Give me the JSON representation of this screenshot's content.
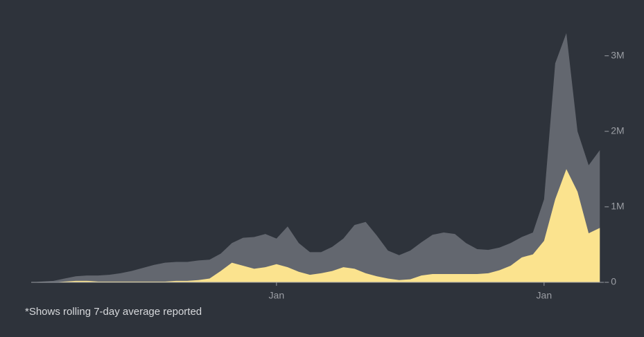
{
  "chart_data": {
    "type": "area",
    "categories": [
      null,
      null,
      null,
      null,
      null,
      null,
      null,
      null,
      null,
      null,
      null,
      null,
      null,
      null,
      null,
      null,
      null,
      null,
      null,
      null,
      null,
      null,
      "Jan",
      null,
      null,
      null,
      null,
      null,
      null,
      null,
      null,
      null,
      null,
      null,
      null,
      null,
      null,
      null,
      null,
      null,
      null,
      null,
      null,
      null,
      null,
      null,
      "Jan",
      null,
      null,
      null,
      null,
      null
    ],
    "series": [
      {
        "color": "#63676f",
        "values": [
          0,
          10000,
          20000,
          50000,
          80000,
          90000,
          90000,
          100000,
          120000,
          150000,
          190000,
          230000,
          260000,
          270000,
          270000,
          290000,
          300000,
          380000,
          520000,
          590000,
          600000,
          640000,
          580000,
          740000,
          520000,
          400000,
          400000,
          470000,
          580000,
          760000,
          800000,
          620000,
          420000,
          360000,
          420000,
          530000,
          630000,
          660000,
          640000,
          520000,
          440000,
          430000,
          460000,
          520000,
          600000,
          660000,
          1100000,
          2900000,
          3300000,
          2000000,
          1550000,
          1750000
        ]
      },
      {
        "color": "#fbe38e",
        "values": [
          0,
          0,
          0,
          10000,
          20000,
          20000,
          10000,
          10000,
          10000,
          10000,
          10000,
          10000,
          10000,
          20000,
          20000,
          30000,
          50000,
          150000,
          260000,
          220000,
          180000,
          200000,
          240000,
          200000,
          140000,
          100000,
          120000,
          150000,
          200000,
          180000,
          120000,
          80000,
          50000,
          30000,
          40000,
          90000,
          110000,
          110000,
          110000,
          110000,
          110000,
          120000,
          160000,
          220000,
          330000,
          370000,
          550000,
          1100000,
          1500000,
          1200000,
          650000,
          720000
        ]
      }
    ],
    "ylim": [
      0,
      3400000
    ],
    "yticks": [
      0,
      {
        "value": 1000000,
        "label": "1M"
      },
      {
        "value": 2000000,
        "label": "2M"
      },
      {
        "value": 3000000,
        "label": "3M"
      }
    ],
    "note": "*Shows rolling 7-day average reported"
  }
}
